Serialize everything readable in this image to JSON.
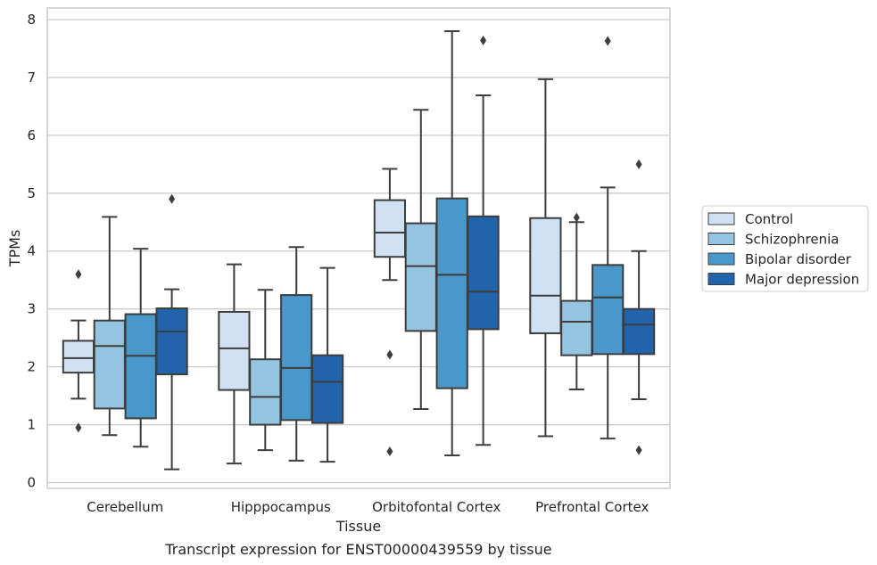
{
  "caption": "Transcript expression for ENST00000439559 by tissue",
  "chart_data": {
    "type": "boxplot",
    "xlabel": "Tissue",
    "ylabel": "TPMs",
    "ylim": [
      -0.1,
      8.2
    ],
    "yticks": [
      0,
      1,
      2,
      3,
      4,
      5,
      6,
      7,
      8
    ],
    "grid": true,
    "legend_position": "right",
    "categories": [
      "Cerebellum",
      "Hipppocampus",
      "Orbitofontal Cortex",
      "Prefrontal Cortex"
    ],
    "series": [
      {
        "name": "Control",
        "color": "#d0e1f2",
        "boxes": [
          {
            "whislo": 1.45,
            "q1": 1.9,
            "med": 2.15,
            "q3": 2.45,
            "whishi": 2.8,
            "fliers": [
              0.95,
              3.6
            ]
          },
          {
            "whislo": 0.33,
            "q1": 1.6,
            "med": 2.32,
            "q3": 2.95,
            "whishi": 3.77,
            "fliers": []
          },
          {
            "whislo": 3.5,
            "q1": 3.9,
            "med": 4.32,
            "q3": 4.88,
            "whishi": 5.42,
            "fliers": [
              2.21,
              0.54
            ]
          },
          {
            "whislo": 0.8,
            "q1": 2.58,
            "med": 3.23,
            "q3": 4.57,
            "whishi": 6.97,
            "fliers": []
          }
        ]
      },
      {
        "name": "Schizophrenia",
        "color": "#94c4df",
        "boxes": [
          {
            "whislo": 0.82,
            "q1": 1.28,
            "med": 2.36,
            "q3": 2.8,
            "whishi": 4.59,
            "fliers": []
          },
          {
            "whislo": 0.56,
            "q1": 1.0,
            "med": 1.48,
            "q3": 2.13,
            "whishi": 3.33,
            "fliers": []
          },
          {
            "whislo": 1.27,
            "q1": 2.62,
            "med": 3.74,
            "q3": 4.48,
            "whishi": 6.44,
            "fliers": []
          },
          {
            "whislo": 1.61,
            "q1": 2.2,
            "med": 2.78,
            "q3": 3.14,
            "whishi": 4.5,
            "fliers": [
              4.58
            ]
          }
        ]
      },
      {
        "name": "Bipolar disorder",
        "color": "#4a98c9",
        "boxes": [
          {
            "whislo": 0.62,
            "q1": 1.11,
            "med": 2.19,
            "q3": 2.91,
            "whishi": 4.04,
            "fliers": []
          },
          {
            "whislo": 0.38,
            "q1": 1.08,
            "med": 1.98,
            "q3": 3.24,
            "whishi": 4.07,
            "fliers": []
          },
          {
            "whislo": 0.47,
            "q1": 1.63,
            "med": 3.59,
            "q3": 4.91,
            "whishi": 7.8,
            "fliers": []
          },
          {
            "whislo": 0.76,
            "q1": 2.22,
            "med": 3.2,
            "q3": 3.76,
            "whishi": 5.1,
            "fliers": [
              7.63
            ]
          }
        ]
      },
      {
        "name": "Major depression",
        "color": "#2164ab",
        "boxes": [
          {
            "whislo": 0.23,
            "q1": 1.87,
            "med": 2.61,
            "q3": 3.01,
            "whishi": 3.34,
            "fliers": [
              4.9
            ]
          },
          {
            "whislo": 0.36,
            "q1": 1.03,
            "med": 1.74,
            "q3": 2.2,
            "whishi": 3.71,
            "fliers": []
          },
          {
            "whislo": 0.65,
            "q1": 2.65,
            "med": 3.3,
            "q3": 4.6,
            "whishi": 6.69,
            "fliers": [
              7.64
            ]
          },
          {
            "whislo": 1.44,
            "q1": 2.22,
            "med": 2.73,
            "q3": 3.0,
            "whishi": 4.0,
            "fliers": [
              5.5,
              0.56
            ]
          }
        ]
      }
    ]
  }
}
